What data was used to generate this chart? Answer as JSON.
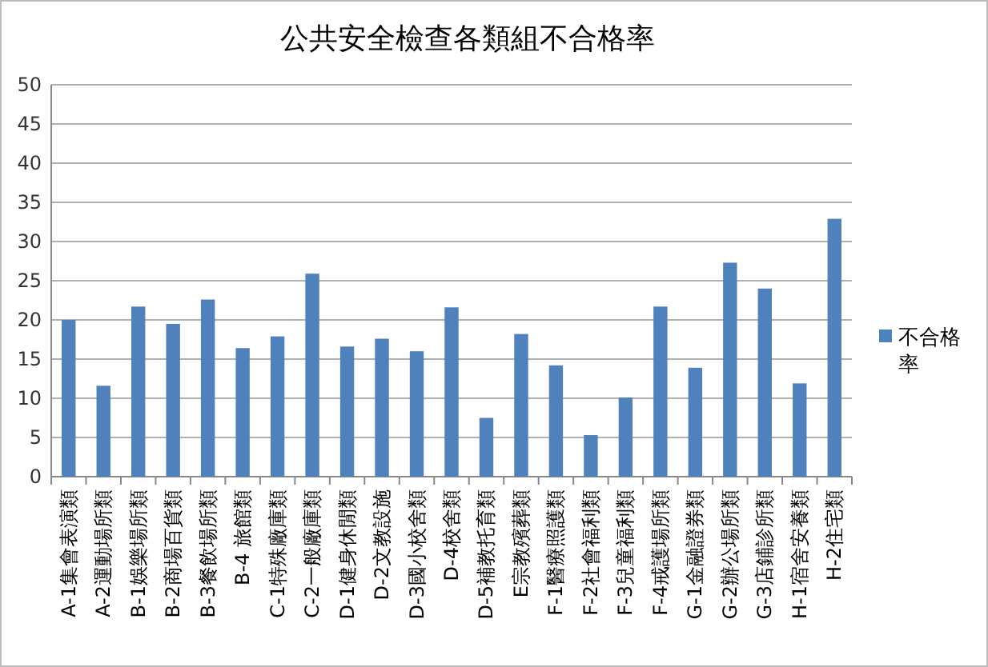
{
  "chart_data": {
    "type": "bar",
    "title": "公共安全檢查各類組不合格率",
    "categories": [
      "A-1集會表演類",
      "A-2運動場所類",
      "B-1娛樂場所類",
      "B-2商場百貨類",
      "B-3餐飲場所類",
      "B-4 旅館類",
      "C-1特殊廠庫類",
      "C-2一般廠庫類",
      "D-1健身休閒類",
      "D-2文教設施",
      "D-3國小校舍類",
      "D-4校舍類",
      "D-5補教托育類",
      "E宗教殯葬類",
      "F-1醫療照護類",
      "F-2社會福利類",
      "F-3兒童福利類",
      "F-4戒護場所類",
      "G-1金融證券類",
      "G-2辦公場所類",
      "G-3店鋪診所類",
      "H-1宿舍安養類",
      "H-2住宅類"
    ],
    "series": [
      {
        "name": "不合格率",
        "color": "#4f81bd",
        "values": [
          20,
          11.6,
          21.7,
          19.5,
          22.6,
          16.4,
          17.9,
          25.9,
          16.6,
          17.6,
          16.0,
          21.6,
          7.5,
          18.2,
          14.2,
          5.3,
          10.1,
          21.7,
          13.9,
          27.3,
          24.0,
          11.9,
          32.9
        ]
      }
    ],
    "ylim": [
      0,
      50
    ],
    "yticks": [
      0,
      5,
      10,
      15,
      20,
      25,
      30,
      35,
      40,
      45,
      50
    ],
    "grid": "y",
    "legend": "right"
  }
}
